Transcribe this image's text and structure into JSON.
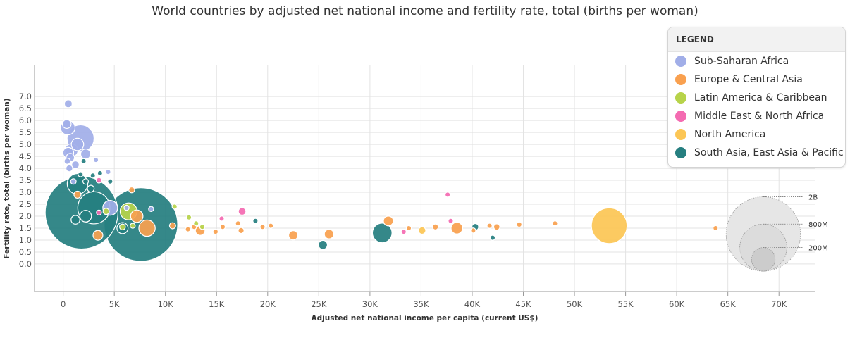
{
  "title": "World countries by adjusted net national income and fertility rate, total (births per woman)",
  "legend": {
    "heading": "LEGEND",
    "items": [
      {
        "label": "Sub-Saharan Africa",
        "color": "#a1aee8"
      },
      {
        "label": "Europe & Central Asia",
        "color": "#f9a04f"
      },
      {
        "label": "Latin America & Caribbean",
        "color": "#b7d34a"
      },
      {
        "label": "Middle East & North Africa",
        "color": "#f46bb1"
      },
      {
        "label": "North America",
        "color": "#fcc655"
      },
      {
        "label": "South Asia, East Asia & Pacific",
        "color": "#267f80"
      }
    ]
  },
  "size_legend": {
    "labels": [
      "2B",
      "800M",
      "200M"
    ],
    "values": [
      2000000000,
      800000000,
      200000000
    ]
  },
  "chart_data": {
    "type": "scatter",
    "title": "World countries by adjusted net national income and fertility rate, total (births per woman)",
    "xlabel": "Adjusted net national income per capita (current US$)",
    "ylabel": "Fertility rate, total (births per woman)",
    "xlim": [
      -2800,
      73500
    ],
    "ylim": [
      -1.15,
      8.3
    ],
    "x_ticks": [
      0,
      5000,
      10000,
      15000,
      20000,
      25000,
      30000,
      35000,
      40000,
      45000,
      50000,
      55000,
      60000,
      65000,
      70000
    ],
    "x_tick_labels": [
      "0",
      "5K",
      "10K",
      "15K",
      "20K",
      "25K",
      "30K",
      "35K",
      "40K",
      "45K",
      "50K",
      "55K",
      "60K",
      "65K",
      "70K"
    ],
    "y_ticks": [
      0,
      0.5,
      1,
      1.5,
      2,
      2.5,
      3,
      3.5,
      4,
      4.5,
      5,
      5.5,
      6,
      6.5,
      7
    ],
    "y_tick_labels": [
      "0.0",
      "0.5",
      "1.0",
      "1.5",
      "2.0",
      "2.5",
      "3.0",
      "3.5",
      "4.0",
      "4.5",
      "5.0",
      "5.5",
      "6.0",
      "6.5",
      "7.0"
    ],
    "grid": true,
    "legend_position": "top-right",
    "size_encoding": "population",
    "series": [
      {
        "region": "Sub-Saharan Africa",
        "points": [
          {
            "x": 500,
            "y": 6.7,
            "size": 16000000
          },
          {
            "x": 350,
            "y": 5.85,
            "size": 20000000
          },
          {
            "x": 450,
            "y": 5.7,
            "size": 55000000
          },
          {
            "x": 1700,
            "y": 5.25,
            "size": 190000000
          },
          {
            "x": 1400,
            "y": 5.0,
            "size": 40000000
          },
          {
            "x": 800,
            "y": 4.75,
            "size": 45000000
          },
          {
            "x": 500,
            "y": 4.65,
            "size": 30000000
          },
          {
            "x": 2200,
            "y": 4.6,
            "size": 26000000
          },
          {
            "x": 700,
            "y": 4.45,
            "size": 18000000
          },
          {
            "x": 400,
            "y": 4.3,
            "size": 10000000
          },
          {
            "x": 1200,
            "y": 4.15,
            "size": 15000000
          },
          {
            "x": 3200,
            "y": 4.35,
            "size": 2000000
          },
          {
            "x": 600,
            "y": 4.0,
            "size": 12000000
          },
          {
            "x": 4400,
            "y": 3.85,
            "size": 2000000
          },
          {
            "x": 1000,
            "y": 3.45,
            "size": 8000000
          },
          {
            "x": 4600,
            "y": 2.35,
            "size": 57000000
          },
          {
            "x": 6200,
            "y": 2.35,
            "size": 1000000
          },
          {
            "x": 8600,
            "y": 2.3,
            "size": 1000000
          }
        ]
      },
      {
        "region": "Europe & Central Asia",
        "points": [
          {
            "x": 6700,
            "y": 3.1,
            "size": 9000000
          },
          {
            "x": 1400,
            "y": 2.9,
            "size": 13000000
          },
          {
            "x": 7200,
            "y": 2.0,
            "size": 40000000
          },
          {
            "x": 8200,
            "y": 1.5,
            "size": 70000000
          },
          {
            "x": 3400,
            "y": 1.2,
            "size": 25000000
          },
          {
            "x": 10700,
            "y": 1.6,
            "size": 10000000
          },
          {
            "x": 12200,
            "y": 1.45,
            "size": 4000000
          },
          {
            "x": 12800,
            "y": 1.55,
            "size": 3000000
          },
          {
            "x": 13400,
            "y": 1.4,
            "size": 24000000
          },
          {
            "x": 14900,
            "y": 1.35,
            "size": 7000000
          },
          {
            "x": 15600,
            "y": 1.55,
            "size": 5000000
          },
          {
            "x": 17100,
            "y": 1.7,
            "size": 5000000
          },
          {
            "x": 17400,
            "y": 1.4,
            "size": 9000000
          },
          {
            "x": 19500,
            "y": 1.55,
            "size": 2000000
          },
          {
            "x": 20300,
            "y": 1.6,
            "size": 2000000
          },
          {
            "x": 22500,
            "y": 1.2,
            "size": 22000000
          },
          {
            "x": 26000,
            "y": 1.25,
            "size": 23000000
          },
          {
            "x": 31800,
            "y": 1.8,
            "size": 25000000
          },
          {
            "x": 33800,
            "y": 1.5,
            "size": 2500000
          },
          {
            "x": 36400,
            "y": 1.55,
            "size": 9000000
          },
          {
            "x": 38500,
            "y": 1.5,
            "size": 35000000
          },
          {
            "x": 40100,
            "y": 1.4,
            "size": 5000000
          },
          {
            "x": 41700,
            "y": 1.6,
            "size": 5000000
          },
          {
            "x": 42400,
            "y": 1.55,
            "size": 10000000
          },
          {
            "x": 44600,
            "y": 1.65,
            "size": 7000000
          },
          {
            "x": 48100,
            "y": 1.7,
            "size": 1000000
          },
          {
            "x": 63800,
            "y": 1.5,
            "size": 5000000
          }
        ]
      },
      {
        "region": "Latin America & Caribbean",
        "points": [
          {
            "x": 6400,
            "y": 2.2,
            "size": 75000000
          },
          {
            "x": 5800,
            "y": 1.55,
            "size": 9000000
          },
          {
            "x": 4200,
            "y": 2.2,
            "size": 10000000
          },
          {
            "x": 6800,
            "y": 1.6,
            "size": 3000000
          },
          {
            "x": 10900,
            "y": 2.4,
            "size": 2000000
          },
          {
            "x": 12300,
            "y": 1.95,
            "size": 2500000
          },
          {
            "x": 13000,
            "y": 1.7,
            "size": 2000000
          },
          {
            "x": 13600,
            "y": 1.55,
            "size": 1000000
          }
        ]
      },
      {
        "region": "Middle East & North Africa",
        "points": [
          {
            "x": 3500,
            "y": 3.5,
            "size": 8000000
          },
          {
            "x": 3500,
            "y": 2.15,
            "size": 6000000
          },
          {
            "x": 15500,
            "y": 1.9,
            "size": 1000000
          },
          {
            "x": 17500,
            "y": 2.2,
            "size": 15000000
          },
          {
            "x": 33300,
            "y": 1.35,
            "size": 4000000
          },
          {
            "x": 37600,
            "y": 2.9,
            "size": 4000000
          },
          {
            "x": 37900,
            "y": 1.8,
            "size": 2000000
          }
        ]
      },
      {
        "region": "North America",
        "points": [
          {
            "x": 35100,
            "y": 1.4,
            "size": 14000000
          },
          {
            "x": 53400,
            "y": 1.6,
            "size": 330000000
          }
        ]
      },
      {
        "region": "South Asia, East Asia & Pacific",
        "points": [
          {
            "x": 1800,
            "y": 2.15,
            "size": 1380000000
          },
          {
            "x": 7600,
            "y": 1.65,
            "size": 1410000000
          },
          {
            "x": 3000,
            "y": 2.35,
            "size": 270000000
          },
          {
            "x": 1400,
            "y": 3.35,
            "size": 110000000
          },
          {
            "x": 2200,
            "y": 2.0,
            "size": 35000000
          },
          {
            "x": 5800,
            "y": 1.5,
            "size": 32000000
          },
          {
            "x": 2700,
            "y": 3.15,
            "size": 12000000
          },
          {
            "x": 2200,
            "y": 3.45,
            "size": 8000000
          },
          {
            "x": 1700,
            "y": 3.75,
            "size": 3000000
          },
          {
            "x": 2000,
            "y": 4.3,
            "size": 1000000
          },
          {
            "x": 4600,
            "y": 3.45,
            "size": 1000000
          },
          {
            "x": 3600,
            "y": 3.8,
            "size": 1000000
          },
          {
            "x": 2900,
            "y": 3.7,
            "size": 1000000
          },
          {
            "x": 1200,
            "y": 1.85,
            "size": 20000000
          },
          {
            "x": 18800,
            "y": 1.8,
            "size": 1000000
          },
          {
            "x": 25400,
            "y": 0.8,
            "size": 21000000
          },
          {
            "x": 31200,
            "y": 1.3,
            "size": 100000000
          },
          {
            "x": 40300,
            "y": 1.55,
            "size": 12000000
          },
          {
            "x": 42000,
            "y": 1.1,
            "size": 4000000
          }
        ]
      }
    ]
  }
}
